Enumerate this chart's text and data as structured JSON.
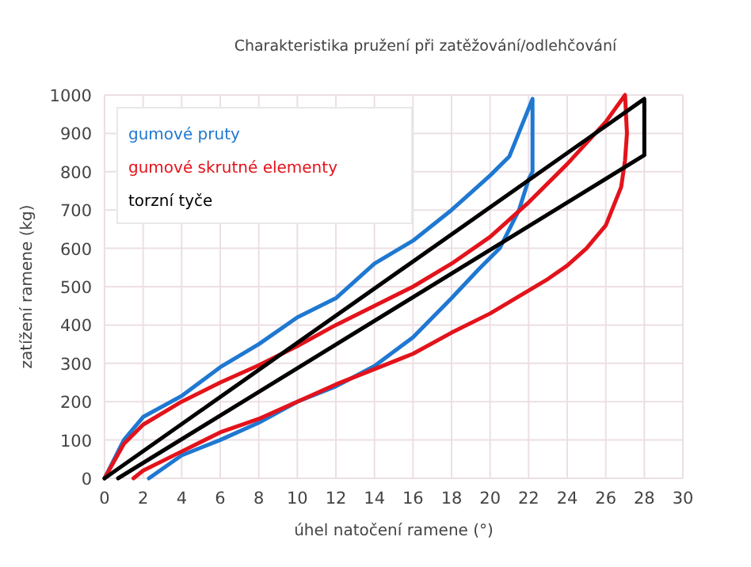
{
  "chart_data": {
    "type": "line",
    "title": "Charakteristika pružení při zatěžování/odlehčování",
    "xlabel": "úhel natočení ramene (°)",
    "ylabel": "zatížení ramene (kg)",
    "xlim": [
      0,
      30
    ],
    "xticks": [
      0,
      2,
      4,
      6,
      8,
      10,
      12,
      14,
      16,
      18,
      20,
      22,
      24,
      26,
      28,
      30
    ],
    "ylim": [
      0,
      1000
    ],
    "yticks": [
      0,
      100,
      200,
      300,
      400,
      500,
      600,
      700,
      800,
      900,
      1000
    ],
    "grid": true,
    "legend": "top left",
    "marker": "none",
    "line_style": "solid",
    "series": [
      {
        "name": "gumové pruty",
        "color": "#1f78d1",
        "x": [
          0,
          1,
          2,
          4,
          6,
          8,
          10,
          12,
          14,
          16,
          18,
          20,
          21,
          22.2,
          22.2,
          22,
          21.5,
          20.5,
          19.4,
          18,
          16,
          14,
          12,
          10,
          8,
          6,
          4,
          2.3
        ],
        "values": [
          0,
          100,
          160,
          215,
          290,
          350,
          420,
          470,
          560,
          620,
          700,
          790,
          840,
          990,
          800,
          780,
          700,
          600,
          545,
          470,
          368,
          293,
          240,
          200,
          145,
          100,
          60,
          0
        ]
      },
      {
        "name": "gumové skrutné elementy",
        "color": "#e3131b",
        "x": [
          0,
          1,
          2,
          4,
          6,
          8,
          10,
          12,
          14,
          16,
          18,
          20,
          22,
          24,
          26,
          27,
          27.1,
          27,
          26.8,
          26,
          25,
          24,
          23,
          22,
          20,
          18,
          16,
          14,
          12,
          10,
          8,
          6,
          4,
          2,
          1.5
        ],
        "values": [
          0,
          90,
          140,
          200,
          250,
          295,
          345,
          400,
          450,
          500,
          560,
          630,
          720,
          820,
          930,
          1000,
          900,
          830,
          760,
          660,
          600,
          555,
          520,
          490,
          430,
          380,
          325,
          285,
          245,
          200,
          155,
          120,
          70,
          20,
          0
        ]
      },
      {
        "name": "torzní tyče",
        "color": "#000000",
        "x": [
          0,
          28,
          28,
          0.7
        ],
        "values": [
          0,
          990,
          843,
          0
        ]
      }
    ]
  }
}
